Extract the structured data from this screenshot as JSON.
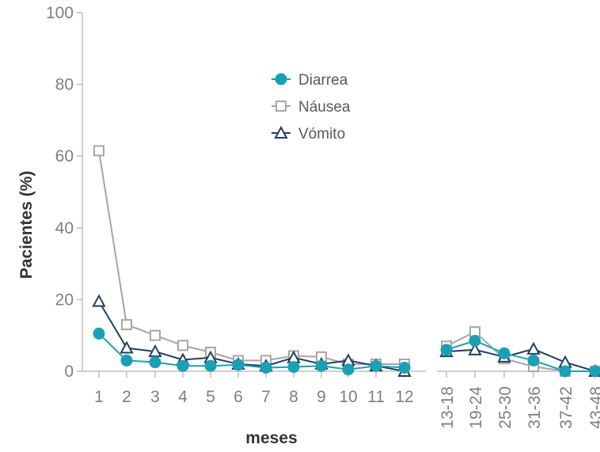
{
  "chart_data": {
    "type": "line",
    "xlabel": "meses",
    "ylabel": "Pacientes (%)",
    "ylim": [
      0,
      100
    ],
    "yticks": [
      "0",
      "20",
      "40",
      "60",
      "80",
      "100"
    ],
    "categories": [
      "1",
      "2",
      "3",
      "4",
      "5",
      "6",
      "7",
      "8",
      "9",
      "10",
      "11",
      "12",
      "13-18",
      "19-24",
      "25-30",
      "31-36",
      "37-42",
      "43-48"
    ],
    "segments": [
      [
        0,
        11
      ],
      [
        12,
        17
      ]
    ],
    "legend_position": "top-center",
    "series": [
      {
        "name": "Diarrea",
        "color": "#1aa0b4",
        "marker": "circle",
        "values": [
          10.5,
          3,
          2.5,
          1.5,
          1.5,
          1.8,
          1,
          1.2,
          1.5,
          0.5,
          1.5,
          1,
          6,
          8.5,
          5,
          3,
          0,
          0
        ]
      },
      {
        "name": "Náusea",
        "color": "#a6a6a6",
        "marker": "square",
        "values": [
          61.5,
          13,
          10,
          7.2,
          5.3,
          3,
          3,
          4.3,
          4,
          2,
          2,
          2,
          7,
          11,
          3.5,
          1.3,
          0,
          0
        ]
      },
      {
        "name": "Vómito",
        "color": "#1f3f60",
        "marker": "triangle",
        "values": [
          19.5,
          6.5,
          5.5,
          3.2,
          3.8,
          2,
          1.5,
          3.8,
          2,
          3,
          1.5,
          0,
          5.5,
          6,
          4,
          6.2,
          2.5,
          0
        ]
      }
    ]
  }
}
